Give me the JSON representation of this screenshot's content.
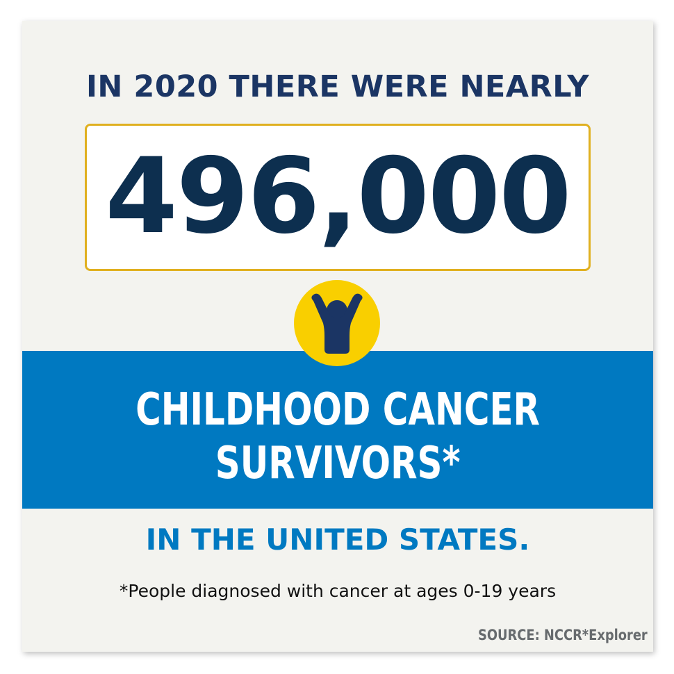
{
  "headline": "IN 2020 THERE WERE NEARLY",
  "number": "496,000",
  "icon": "person-arms-raised-icon",
  "band": {
    "line1": "CHILDHOOD CANCER",
    "line2": "SURVIVORS*"
  },
  "subheadline": "IN THE UNITED STATES.",
  "footnote": "*People diagnosed with cancer at ages 0-19 years",
  "source": "SOURCE: NCCR*Explorer",
  "colors": {
    "navy": "#1b3564",
    "blue": "#0079c1",
    "yellow": "#f9cf00",
    "gold_border": "#e0b020"
  }
}
